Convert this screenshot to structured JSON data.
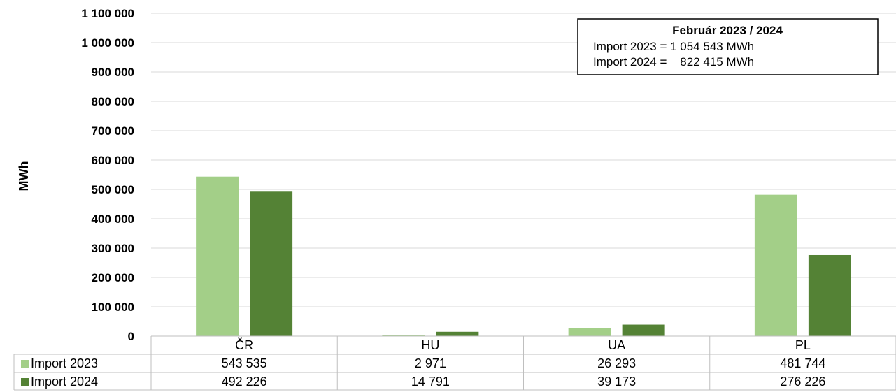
{
  "chart_data": {
    "type": "bar",
    "categories": [
      "ČR",
      "HU",
      "UA",
      "PL"
    ],
    "series": [
      {
        "name": "Import 2023",
        "values": [
          543535,
          2971,
          26293,
          481744
        ],
        "value_labels": [
          "543 535",
          "2 971",
          "26 293",
          "481 744"
        ],
        "color": "#a3cf88"
      },
      {
        "name": "Import 2024",
        "values": [
          492226,
          14791,
          39173,
          276226
        ],
        "value_labels": [
          "492 226",
          "14 791",
          "39 173",
          "276 226"
        ],
        "color": "#548235"
      }
    ],
    "ylabel": "MWh",
    "ylim": [
      0,
      1100000
    ],
    "yticks": [
      0,
      100000,
      200000,
      300000,
      400000,
      500000,
      600000,
      700000,
      800000,
      900000,
      1000000,
      1100000
    ],
    "ytick_labels": [
      "0",
      "100 000",
      "200 000",
      "300 000",
      "400 000",
      "500 000",
      "600 000",
      "700 000",
      "800 000",
      "900 000",
      "1 000 000",
      "1 100 000"
    ],
    "grid": true,
    "legend": "data-table",
    "annotation": {
      "title": "Február 2023 / 2024",
      "lines": [
        "Import 2023 = 1 054 543 MWh",
        "Import 2024 =    822 415 MWh"
      ]
    }
  }
}
